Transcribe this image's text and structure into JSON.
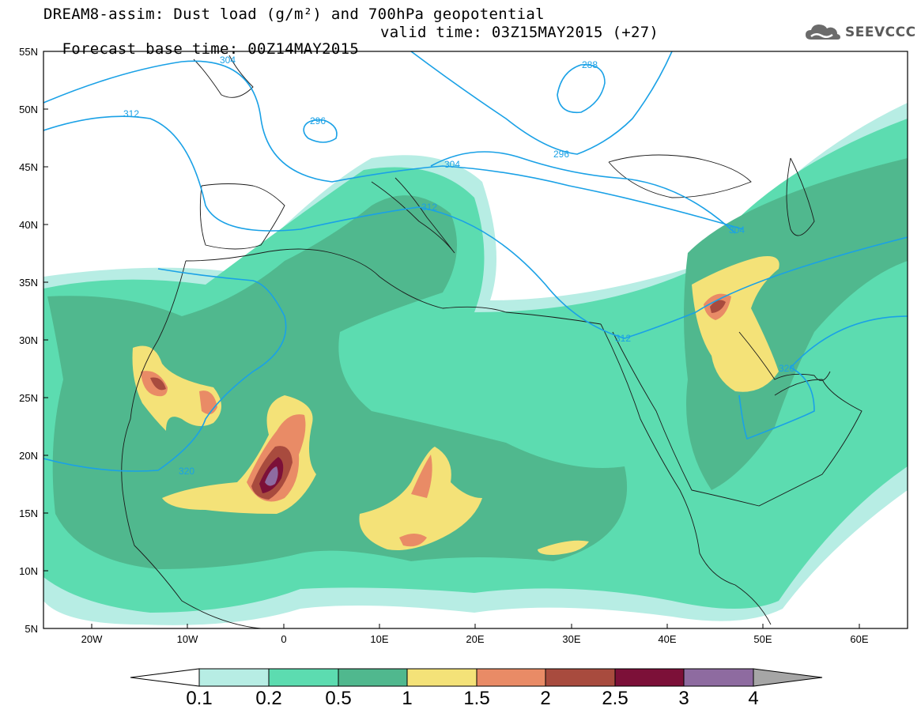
{
  "title": {
    "line1": "DREAM8-assim: Dust load (g/m²) and 700hPa geopotential",
    "line2": "Forecast base time: 00Z14MAY2015",
    "valid": "valid time: 03Z15MAY2015 (+27)"
  },
  "logo": {
    "text": "SEEVCCC",
    "icon": "cloud-icon"
  },
  "map": {
    "lon_range": [
      -25,
      65
    ],
    "lat_range": [
      5,
      55
    ],
    "lat_ticks": [
      "55N",
      "50N",
      "45N",
      "40N",
      "35N",
      "30N",
      "25N",
      "20N",
      "15N",
      "10N",
      "5N"
    ],
    "lon_ticks": [
      "20W",
      "10W",
      "0",
      "10E",
      "20E",
      "30E",
      "40E",
      "50E",
      "60E"
    ],
    "isoline_labels": [
      "304",
      "288",
      "312",
      "296",
      "296",
      "304",
      "312",
      "304",
      "312",
      "320",
      "320"
    ],
    "isoline_color": "#1aa1e6"
  },
  "colorbar": {
    "labels": [
      "0.1",
      "0.2",
      "0.5",
      "1",
      "1.5",
      "2",
      "2.5",
      "3",
      "4"
    ],
    "colors": [
      "#ffffff",
      "#b7ede4",
      "#5cdcb0",
      "#50b88e",
      "#f4e278",
      "#e98b66",
      "#a84b3e",
      "#7c1038",
      "#8e6ba0",
      "#a6a6a6"
    ]
  }
}
